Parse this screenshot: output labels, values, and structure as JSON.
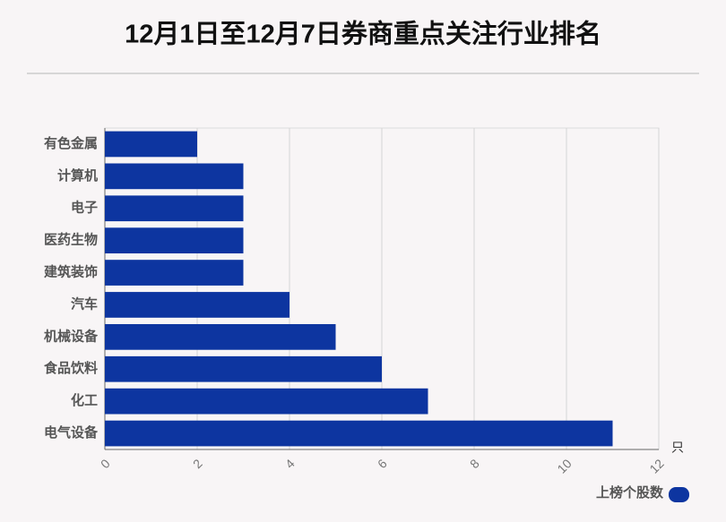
{
  "chart_data": {
    "type": "bar",
    "horizontal": true,
    "title": "12月1日至12月7日券商重点关注行业排名",
    "categories": [
      "有色金属",
      "计算机",
      "电子",
      "医药生物",
      "建筑装饰",
      "汽车",
      "机械设备",
      "食品饮料",
      "化工",
      "电气设备"
    ],
    "series": [
      {
        "name": "上榜个股数",
        "color": "#0d35a0",
        "values": [
          2,
          3,
          3,
          3,
          3,
          4,
          5,
          6,
          7,
          11
        ]
      }
    ],
    "xlabel": "只",
    "xlim": [
      0,
      12
    ],
    "xticks": [
      0,
      2,
      4,
      6,
      8,
      10,
      12
    ],
    "grid": true
  }
}
